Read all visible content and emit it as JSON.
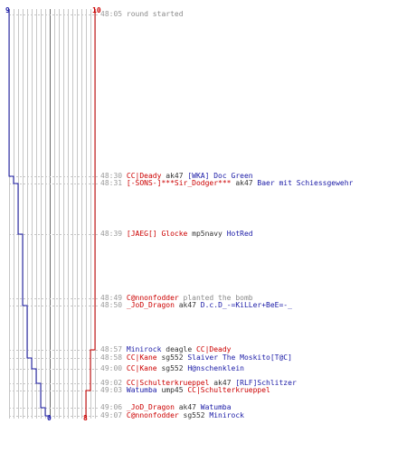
{
  "colors": {
    "blue": "#1a1aa6",
    "red": "#cc0000",
    "grid": "#c6c6c6",
    "mid": "#6a6a6a"
  },
  "scores": {
    "blue_start": "9",
    "red_start": "10",
    "blue_end": "0",
    "red_end": "8"
  },
  "log": [
    {
      "time": "48:05",
      "parts": [
        {
          "t": "round started",
          "c": "sys"
        }
      ]
    },
    {
      "time": "48:30",
      "parts": [
        {
          "t": "CC|Deady",
          "c": "red"
        },
        {
          "t": " ak47 ",
          "c": "act"
        },
        {
          "t": "[WKA] Doc Green",
          "c": "blue"
        }
      ]
    },
    {
      "time": "48:31",
      "parts": [
        {
          "t": "[-SONS-]***Sir_Dodger***",
          "c": "red"
        },
        {
          "t": " ak47 ",
          "c": "act"
        },
        {
          "t": "Baer mit Schiessgewehr",
          "c": "blue"
        }
      ]
    },
    {
      "time": "48:39",
      "parts": [
        {
          "t": "[JAEG[] Glocke",
          "c": "red"
        },
        {
          "t": " mp5navy ",
          "c": "act"
        },
        {
          "t": "HotRed",
          "c": "blue"
        }
      ]
    },
    {
      "time": "48:49",
      "parts": [
        {
          "t": "C@nnonfodder",
          "c": "red"
        },
        {
          "t": " planted the bomb",
          "c": "sys"
        }
      ]
    },
    {
      "time": "48:50",
      "parts": [
        {
          "t": "_JoD_Dragon",
          "c": "red"
        },
        {
          "t": " ak47 ",
          "c": "act"
        },
        {
          "t": "D.c.D_-=KiLLer+BeE=-_",
          "c": "blue"
        }
      ]
    },
    {
      "time": "48:57",
      "parts": [
        {
          "t": "Minirock",
          "c": "blue"
        },
        {
          "t": " deagle ",
          "c": "act"
        },
        {
          "t": "CC|Deady",
          "c": "red"
        }
      ]
    },
    {
      "time": "48:58",
      "parts": [
        {
          "t": "CC|Kane",
          "c": "red"
        },
        {
          "t": " sg552 ",
          "c": "act"
        },
        {
          "t": "Slaiver The Moskito[T@C]",
          "c": "blue"
        }
      ]
    },
    {
      "time": "49:00",
      "parts": [
        {
          "t": "CC|Kane",
          "c": "red"
        },
        {
          "t": " sg552 ",
          "c": "act"
        },
        {
          "t": "H@nschenklein",
          "c": "blue"
        }
      ]
    },
    {
      "time": "49:02",
      "parts": [
        {
          "t": "CC|Schulterkrueppel",
          "c": "red"
        },
        {
          "t": " ak47 ",
          "c": "act"
        },
        {
          "t": "[RLF]Schlitzer",
          "c": "blue"
        }
      ]
    },
    {
      "time": "49:03",
      "parts": [
        {
          "t": "Watumba",
          "c": "blue"
        },
        {
          "t": " ump45 ",
          "c": "act"
        },
        {
          "t": "CC|Schulterkrueppel",
          "c": "red"
        }
      ]
    },
    {
      "time": "49:06",
      "parts": [
        {
          "t": "_JoD_Dragon",
          "c": "red"
        },
        {
          "t": " ak47 ",
          "c": "act"
        },
        {
          "t": "Watumba",
          "c": "blue"
        }
      ]
    },
    {
      "time": "49:07",
      "parts": [
        {
          "t": "C@nnonfodder",
          "c": "red"
        },
        {
          "t": " sg552 ",
          "c": "act"
        },
        {
          "t": "Minirock",
          "c": "blue"
        }
      ]
    }
  ]
}
